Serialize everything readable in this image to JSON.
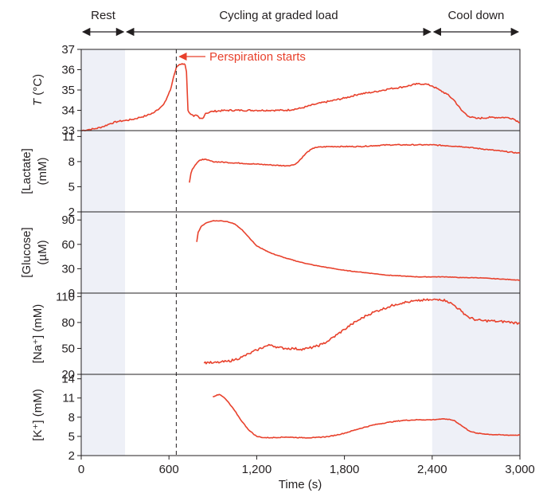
{
  "chart_data": {
    "type": "line",
    "x_axis": {
      "label": "Time (s)",
      "range": [
        0,
        3000
      ],
      "ticks": [
        0,
        600,
        1200,
        1800,
        2400,
        3000
      ],
      "tick_labels": [
        "0",
        "600",
        "1,200",
        "1,800",
        "2,400",
        "3,000"
      ]
    },
    "phases": [
      {
        "label": "Rest",
        "start": 0,
        "end": 300,
        "shaded": true
      },
      {
        "label": "Cycling at graded load",
        "start": 300,
        "end": 2400,
        "shaded": false
      },
      {
        "label": "Cool down",
        "start": 2400,
        "end": 3000,
        "shaded": true
      }
    ],
    "annotation": {
      "label": "Perspiration starts",
      "x": 650
    },
    "line_color": "#e8412c",
    "shade_color": "#eef0f7",
    "panels": [
      {
        "ylabel_main": "T",
        "ylabel_rest": " (°C)",
        "ylim": [
          33,
          37
        ],
        "yticks": [
          33,
          34,
          35,
          36,
          37
        ],
        "x": [
          0,
          50,
          100,
          150,
          200,
          250,
          300,
          350,
          400,
          450,
          500,
          550,
          580,
          610,
          630,
          650,
          670,
          690,
          710,
          720,
          730,
          750,
          770,
          790,
          810,
          830,
          850,
          900,
          1000,
          1100,
          1200,
          1300,
          1400,
          1500,
          1600,
          1700,
          1800,
          1900,
          2000,
          2100,
          2200,
          2300,
          2350,
          2400,
          2450,
          2500,
          2550,
          2600,
          2650,
          2700,
          2800,
          2900,
          2950,
          3000
        ],
        "y": [
          33.0,
          33.05,
          33.1,
          33.2,
          33.35,
          33.45,
          33.5,
          33.55,
          33.65,
          33.75,
          33.9,
          34.2,
          34.5,
          35.0,
          35.6,
          36.1,
          36.25,
          36.3,
          36.25,
          35.9,
          34.0,
          33.8,
          33.7,
          33.75,
          33.6,
          33.6,
          33.85,
          33.95,
          34.0,
          34.0,
          34.0,
          34.0,
          34.0,
          34.1,
          34.3,
          34.45,
          34.6,
          34.8,
          34.9,
          35.05,
          35.15,
          35.3,
          35.3,
          35.2,
          35.0,
          34.8,
          34.5,
          34.0,
          33.7,
          33.6,
          33.65,
          33.65,
          33.6,
          33.4
        ],
        "noise": 0.04
      },
      {
        "ylabel_main": "[Lactate]",
        "ylabel_rest": "(mM)",
        "ylim": [
          2,
          11.7
        ],
        "yticks": [
          2,
          5,
          8,
          11
        ],
        "x": [
          740,
          750,
          760,
          780,
          800,
          830,
          860,
          900,
          1000,
          1100,
          1200,
          1300,
          1400,
          1450,
          1480,
          1500,
          1550,
          1600,
          1700,
          1800,
          1900,
          2000,
          2100,
          2200,
          2300,
          2400,
          2500,
          2600,
          2700,
          2800,
          2900,
          3000
        ],
        "y": [
          5.5,
          6.6,
          7.1,
          7.6,
          8.0,
          8.3,
          8.2,
          8.0,
          7.9,
          7.8,
          7.7,
          7.6,
          7.5,
          7.6,
          7.9,
          8.3,
          9.2,
          9.7,
          9.8,
          9.8,
          9.8,
          9.9,
          10.0,
          10.0,
          10.0,
          10.0,
          9.9,
          9.8,
          9.6,
          9.4,
          9.2,
          9.0
        ],
        "noise": 0.06
      },
      {
        "ylabel_main": "[Glucose]",
        "ylabel_rest": "(µM)",
        "ylim": [
          0,
          100
        ],
        "yticks": [
          0,
          30,
          60,
          90
        ],
        "x": [
          790,
          800,
          820,
          850,
          900,
          950,
          1000,
          1050,
          1100,
          1150,
          1200,
          1300,
          1400,
          1500,
          1600,
          1700,
          1800,
          1900,
          2000,
          2100,
          2200,
          2300,
          2400,
          2500,
          2600,
          2700,
          2800,
          2900,
          3000
        ],
        "y": [
          63,
          75,
          82,
          86,
          89,
          89,
          88,
          85,
          78,
          68,
          58,
          49,
          43,
          38,
          34,
          31,
          28,
          26,
          24,
          22,
          21,
          20,
          20,
          20,
          19,
          19,
          18,
          17,
          16
        ],
        "noise": 0.3
      },
      {
        "ylabel_main": "[Na⁺]",
        "ylabel_rest": " (mM)",
        "ylim": [
          20,
          114
        ],
        "yticks": [
          20,
          50,
          80,
          110
        ],
        "x": [
          840,
          870,
          900,
          950,
          1000,
          1050,
          1100,
          1150,
          1200,
          1250,
          1300,
          1350,
          1400,
          1450,
          1500,
          1550,
          1600,
          1650,
          1700,
          1750,
          1800,
          1850,
          1900,
          1950,
          2000,
          2050,
          2100,
          2150,
          2200,
          2250,
          2300,
          2350,
          2400,
          2450,
          2500,
          2550,
          2600,
          2650,
          2700,
          2750,
          2800,
          2850,
          2900,
          2950,
          3000
        ],
        "y": [
          33,
          34,
          33,
          34,
          35,
          37,
          40,
          44,
          48,
          52,
          54,
          51,
          50,
          50,
          49,
          50,
          52,
          55,
          60,
          66,
          72,
          78,
          83,
          88,
          92,
          95,
          98,
          101,
          103,
          104,
          105,
          106,
          106,
          107,
          105,
          100,
          93,
          86,
          83,
          82,
          82,
          81,
          81,
          80,
          79
        ],
        "noise": 1.4
      },
      {
        "ylabel_main": "[K⁺]",
        "ylabel_rest": " (mM)",
        "ylim": [
          2,
          14.7
        ],
        "yticks": [
          2,
          5,
          8,
          11,
          14
        ],
        "x": [
          900,
          930,
          950,
          980,
          1000,
          1050,
          1100,
          1150,
          1200,
          1250,
          1300,
          1400,
          1500,
          1600,
          1700,
          1800,
          1900,
          2000,
          2100,
          2200,
          2300,
          2400,
          2450,
          2500,
          2550,
          2600,
          2650,
          2700,
          2800,
          2900,
          3000
        ],
        "y": [
          11.2,
          11.5,
          11.5,
          11.0,
          10.5,
          9.0,
          7.3,
          5.9,
          5.0,
          4.8,
          4.8,
          4.9,
          4.8,
          4.8,
          5.0,
          5.5,
          6.2,
          6.8,
          7.2,
          7.5,
          7.6,
          7.6,
          7.7,
          7.7,
          7.5,
          6.7,
          5.9,
          5.5,
          5.3,
          5.2,
          5.2
        ],
        "noise": 0.06
      }
    ]
  }
}
